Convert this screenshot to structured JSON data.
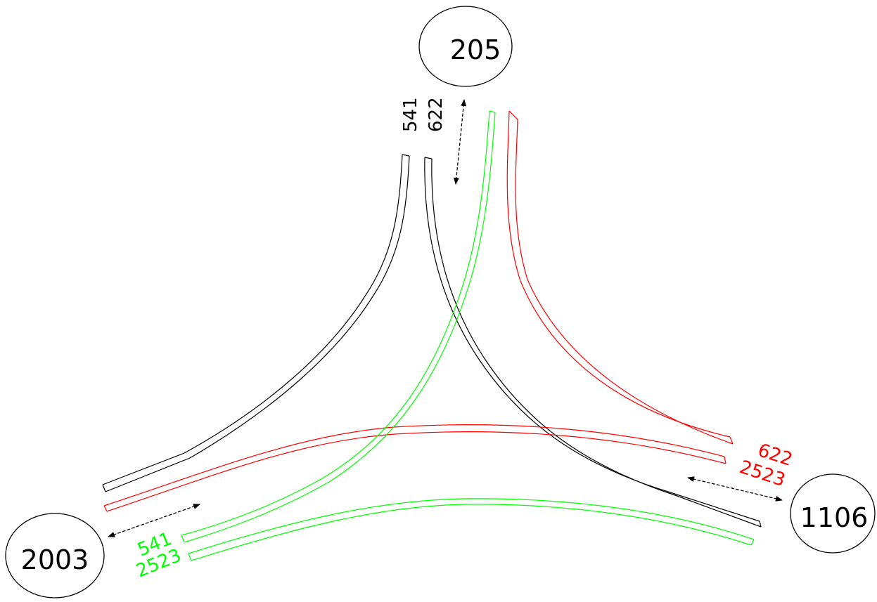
{
  "nodes": [
    {
      "id": "205",
      "label": "205"
    },
    {
      "id": "2003",
      "label": "2003"
    },
    {
      "id": "1106",
      "label": "1106"
    }
  ],
  "routes": {
    "black_a": "541",
    "black_b": "622",
    "red_a": "622",
    "red_b": "2523",
    "green_a": "541",
    "green_b": "2523"
  },
  "colors": {
    "black": "#000000",
    "red": "#ff0000",
    "green": "#00ff00"
  }
}
